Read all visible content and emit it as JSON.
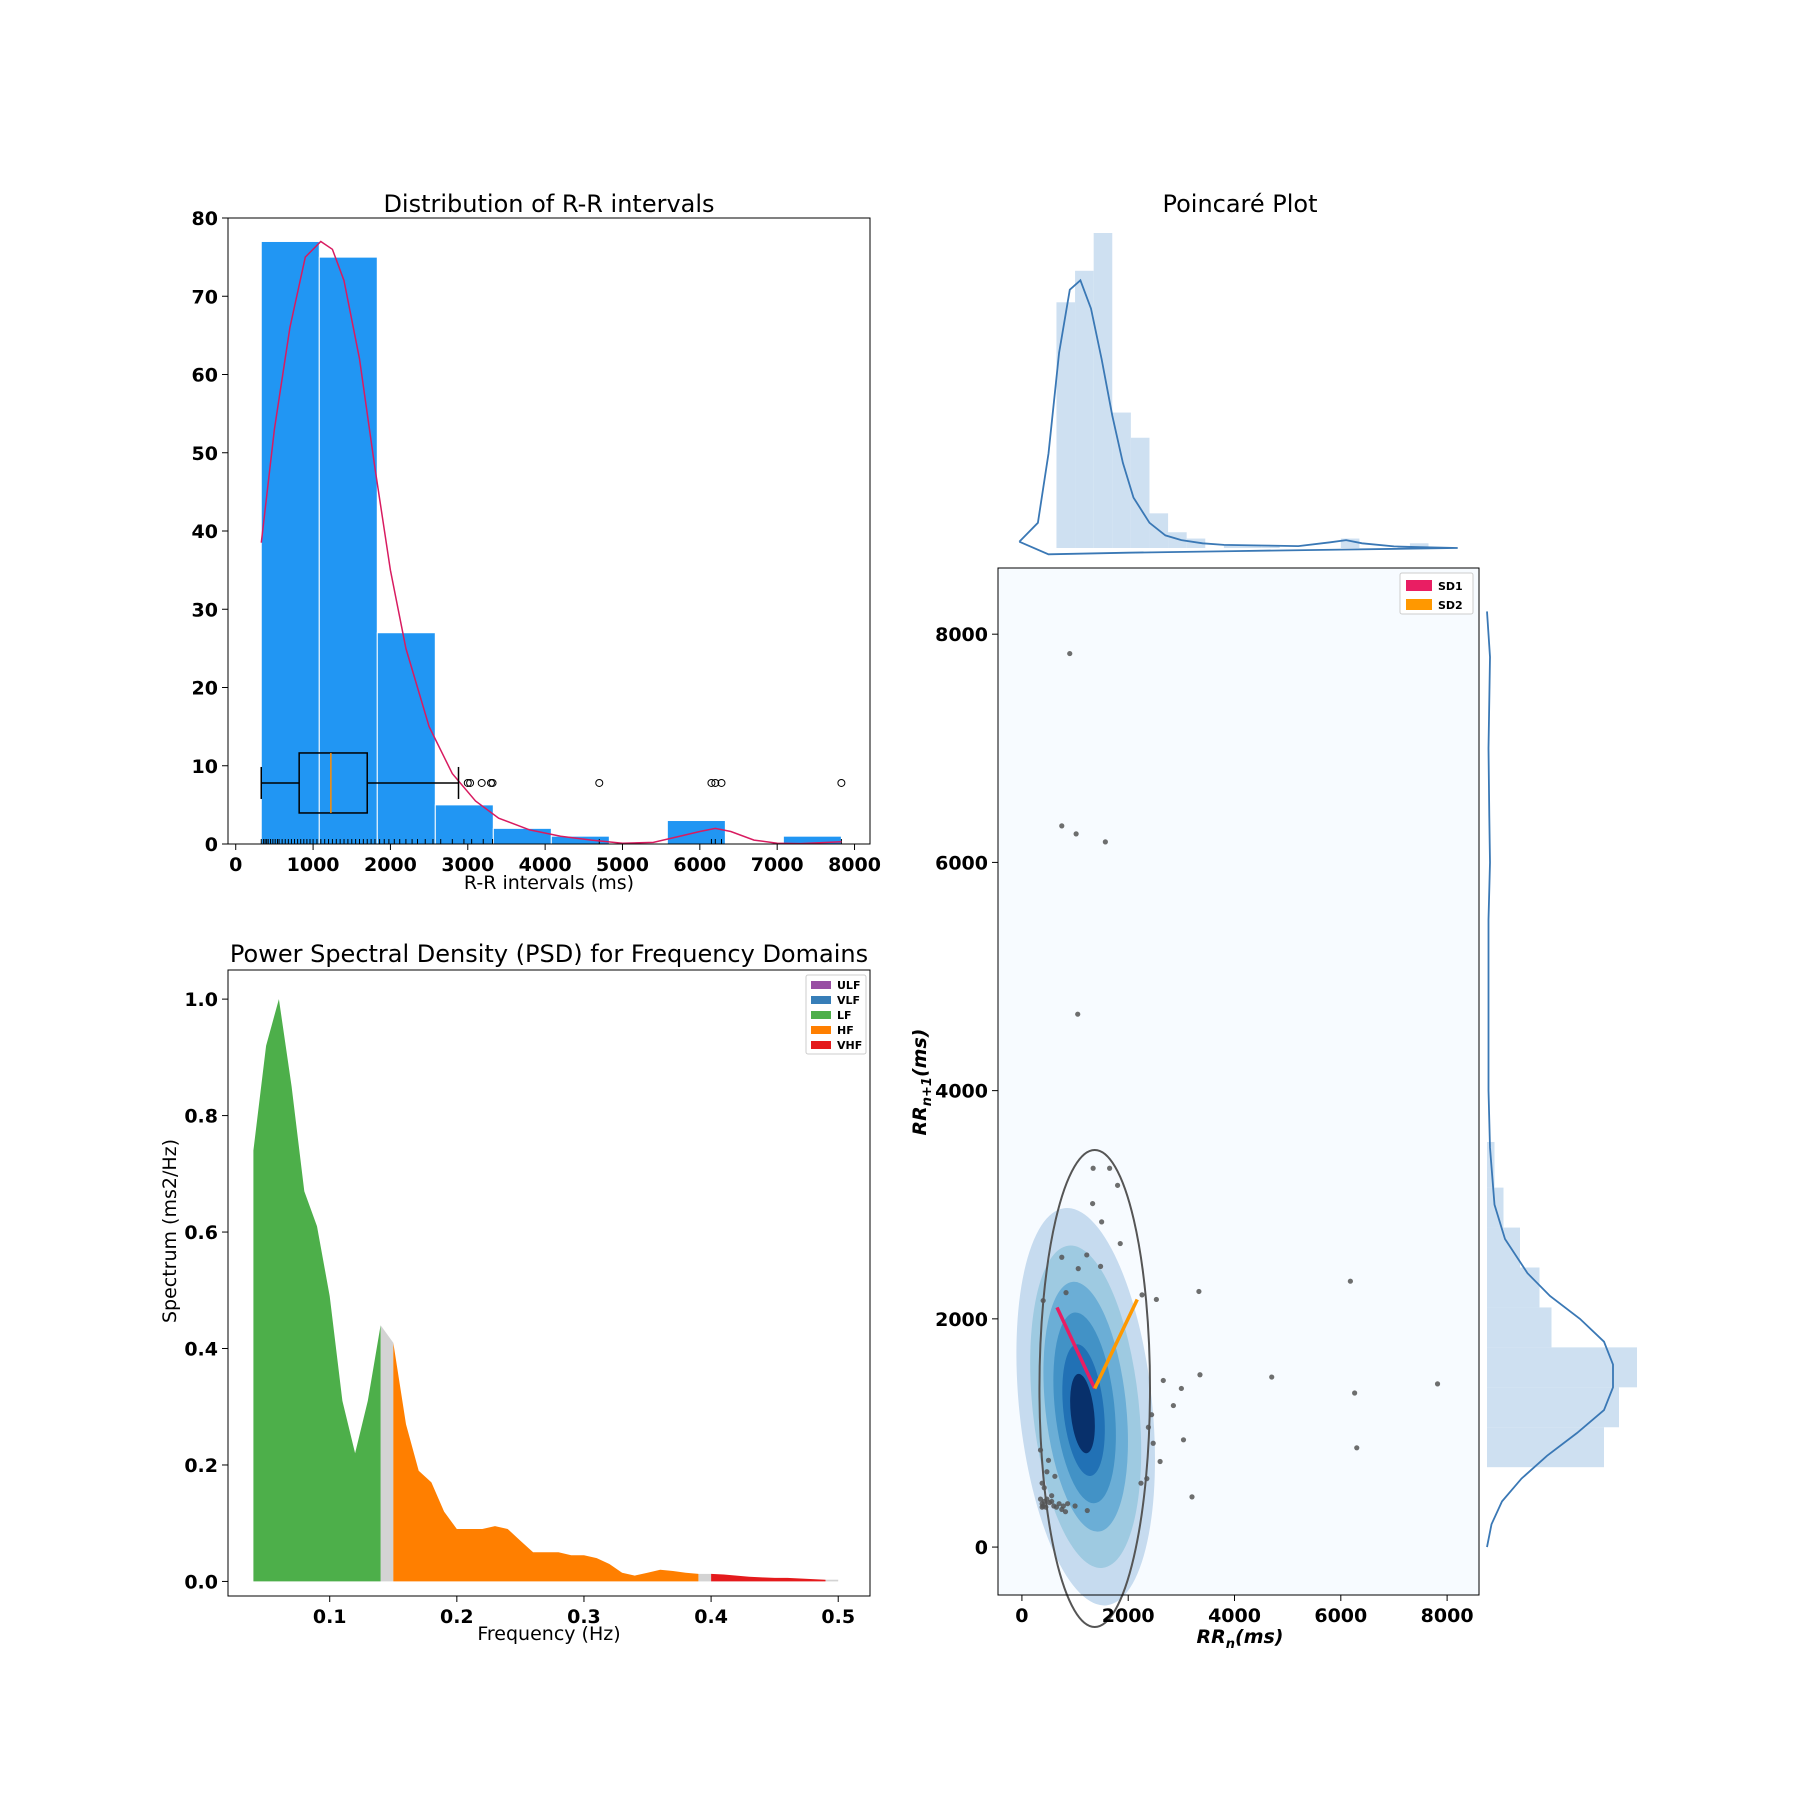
{
  "chart_data": [
    {
      "type": "bar",
      "title": "Distribution of R-R intervals",
      "xlabel": "R-R intervals (ms)",
      "ylabel": "",
      "xlim": [
        -100,
        8200
      ],
      "ylim": [
        0,
        80
      ],
      "xticks": [
        0,
        1000,
        2000,
        3000,
        4000,
        5000,
        6000,
        7000,
        8000
      ],
      "yticks": [
        0,
        10,
        20,
        30,
        40,
        50,
        60,
        70,
        80
      ],
      "bar_color": "#2196F3",
      "kde_color": "#D81B60",
      "bins": [
        {
          "x0": 330,
          "x1": 1080,
          "count": 77
        },
        {
          "x0": 1080,
          "x1": 1830,
          "count": 75
        },
        {
          "x0": 1830,
          "x1": 2580,
          "count": 27
        },
        {
          "x0": 2580,
          "x1": 3330,
          "count": 5
        },
        {
          "x0": 3330,
          "x1": 4080,
          "count": 2
        },
        {
          "x0": 4080,
          "x1": 4830,
          "count": 1
        },
        {
          "x0": 4830,
          "x1": 5580,
          "count": 0
        },
        {
          "x0": 5580,
          "x1": 6330,
          "count": 3
        },
        {
          "x0": 6330,
          "x1": 7080,
          "count": 0
        },
        {
          "x0": 7080,
          "x1": 7830,
          "count": 1
        }
      ],
      "kde": {
        "x": [
          330,
          500,
          700,
          900,
          1100,
          1250,
          1400,
          1600,
          1800,
          2000,
          2200,
          2500,
          2800,
          3100,
          3400,
          3800,
          4200,
          4600,
          5000,
          5400,
          5700,
          6000,
          6200,
          6400,
          6700,
          7000,
          7300,
          7830
        ],
        "y": [
          38.5,
          53,
          66,
          75,
          77,
          76,
          72,
          62,
          48,
          35,
          25,
          15,
          9,
          5.5,
          3.3,
          1.8,
          1.0,
          0.5,
          0.1,
          0.2,
          0.9,
          1.6,
          2.0,
          1.6,
          0.5,
          0.1,
          0.05,
          0.3
        ]
      },
      "boxplot": {
        "y_level": 7.8,
        "whisker_low": 330,
        "q1": 820,
        "median": 1230,
        "q3": 1700,
        "whisker_high": 2880,
        "outliers": [
          3000,
          3030,
          3180,
          3300,
          3320,
          4700,
          6150,
          6200,
          6280,
          7830
        ]
      },
      "rug": [
        330,
        360,
        380,
        400,
        420,
        450,
        480,
        510,
        540,
        560,
        600,
        640,
        680,
        720,
        760,
        800,
        840,
        880,
        920,
        960,
        1000,
        1050,
        1100,
        1150,
        1200,
        1250,
        1300,
        1350,
        1400,
        1450,
        1500,
        1550,
        1600,
        1650,
        1700,
        1750,
        1800,
        1860,
        1920,
        1980,
        2050,
        2120,
        2200,
        2280,
        2350,
        2450,
        2550,
        2650,
        2800,
        2950,
        3050,
        3200,
        3320,
        4700,
        6150,
        6200,
        6280,
        7830
      ]
    },
    {
      "type": "area",
      "title": "Power Spectral Density (PSD) for Frequency Domains",
      "xlabel": "Frequency (Hz)",
      "ylabel": "Spectrum (ms2/Hz)",
      "xlim": [
        0.02,
        0.525
      ],
      "ylim": [
        -0.025,
        1.05
      ],
      "xticks": [
        0.1,
        0.2,
        0.3,
        0.4,
        0.5
      ],
      "yticks": [
        0.0,
        0.2,
        0.4,
        0.6,
        0.8,
        1.0
      ],
      "x": [
        0.04,
        0.05,
        0.06,
        0.07,
        0.08,
        0.09,
        0.1,
        0.11,
        0.12,
        0.13,
        0.14,
        0.15,
        0.16,
        0.17,
        0.18,
        0.19,
        0.2,
        0.21,
        0.22,
        0.23,
        0.24,
        0.25,
        0.26,
        0.27,
        0.28,
        0.29,
        0.3,
        0.31,
        0.32,
        0.33,
        0.34,
        0.35,
        0.36,
        0.37,
        0.38,
        0.39,
        0.4,
        0.41,
        0.42,
        0.43,
        0.44,
        0.45,
        0.46,
        0.47,
        0.48,
        0.49,
        0.5
      ],
      "y": [
        0.74,
        0.92,
        1.0,
        0.85,
        0.67,
        0.61,
        0.49,
        0.31,
        0.22,
        0.31,
        0.44,
        0.41,
        0.27,
        0.19,
        0.17,
        0.12,
        0.09,
        0.09,
        0.09,
        0.095,
        0.09,
        0.07,
        0.05,
        0.05,
        0.05,
        0.045,
        0.045,
        0.04,
        0.03,
        0.015,
        0.01,
        0.015,
        0.02,
        0.018,
        0.015,
        0.013,
        0.013,
        0.012,
        0.01,
        0.008,
        0.007,
        0.006,
        0.006,
        0.005,
        0.004,
        0.003,
        0.003
      ],
      "bands": [
        {
          "name": "ULF",
          "range": [
            0,
            0.0033
          ],
          "color": "#984EA3"
        },
        {
          "name": "VLF",
          "range": [
            0.0033,
            0.04
          ],
          "color": "#377EB8"
        },
        {
          "name": "LF",
          "range": [
            0.04,
            0.14
          ],
          "color": "#4DAF4A"
        },
        {
          "name": "HF",
          "range": [
            0.15,
            0.39
          ],
          "color": "#FF7F00"
        },
        {
          "name": "VHF",
          "range": [
            0.4,
            0.49
          ],
          "color": "#E41A1C"
        }
      ],
      "gap_color": "#D3D3D3",
      "legend_position": "upper-right"
    },
    {
      "type": "scatter",
      "title": "Poincaré Plot",
      "xlabel": "RRn(ms)",
      "ylabel": "RRn+1(ms)",
      "xlabel_main": "RR",
      "xlabel_sub": "n",
      "xlabel_unit": "(ms)",
      "ylabel_main": "RR",
      "ylabel_sub": "n+1",
      "ylabel_unit": "(ms)",
      "xlim": [
        -450,
        8600
      ],
      "ylim": [
        -420,
        8580
      ],
      "xticks": [
        0,
        2000,
        4000,
        6000,
        8000
      ],
      "yticks": [
        0,
        2000,
        4000,
        6000,
        8000
      ],
      "points": [
        [
          900,
          7830
        ],
        [
          750,
          6320
        ],
        [
          1020,
          6250
        ],
        [
          1570,
          6180
        ],
        [
          1050,
          4670
        ],
        [
          1340,
          3320
        ],
        [
          1650,
          3320
        ],
        [
          1800,
          3170
        ],
        [
          1330,
          3010
        ],
        [
          1500,
          2850
        ],
        [
          1850,
          2660
        ],
        [
          750,
          2540
        ],
        [
          1220,
          2560
        ],
        [
          1480,
          2460
        ],
        [
          1060,
          2440
        ],
        [
          830,
          2230
        ],
        [
          2260,
          2210
        ],
        [
          2530,
          2170
        ],
        [
          3330,
          2240
        ],
        [
          6180,
          2330
        ],
        [
          400,
          2160
        ],
        [
          3350,
          1510
        ],
        [
          2660,
          1460
        ],
        [
          4700,
          1490
        ],
        [
          3000,
          1390
        ],
        [
          7820,
          1430
        ],
        [
          6260,
          1350
        ],
        [
          2850,
          1240
        ],
        [
          2440,
          1160
        ],
        [
          2380,
          1050
        ],
        [
          3040,
          940
        ],
        [
          2470,
          910
        ],
        [
          2600,
          750
        ],
        [
          6300,
          870
        ],
        [
          2350,
          600
        ],
        [
          2240,
          560
        ],
        [
          3200,
          440
        ],
        [
          350,
          850
        ],
        [
          500,
          760
        ],
        [
          470,
          660
        ],
        [
          620,
          620
        ],
        [
          380,
          560
        ],
        [
          420,
          520
        ],
        [
          560,
          450
        ],
        [
          470,
          420
        ],
        [
          420,
          400
        ],
        [
          520,
          390
        ],
        [
          380,
          380
        ],
        [
          400,
          360
        ],
        [
          380,
          350
        ],
        [
          450,
          350
        ],
        [
          600,
          360
        ],
        [
          700,
          380
        ],
        [
          780,
          360
        ],
        [
          860,
          380
        ],
        [
          1000,
          360
        ],
        [
          750,
          330
        ],
        [
          820,
          310
        ],
        [
          1230,
          320
        ],
        [
          350,
          420
        ],
        [
          560,
          400
        ],
        [
          650,
          350
        ]
      ],
      "point_color": "#555555",
      "centroid": [
        1370,
        1390
      ],
      "ellipse": {
        "rx": 1040,
        "ry": 2090
      },
      "sd1_end": [
        660,
        2100
      ],
      "sd2_end": [
        2170,
        2170
      ],
      "legend": [
        {
          "label": "SD1",
          "color": "#E91E63"
        },
        {
          "label": "SD2",
          "color": "#FF9800"
        }
      ],
      "kde_levels": [
        {
          "cx": 1200,
          "cy": 1230,
          "rx": 1250,
          "ry": 1750,
          "color": "#C6DBEF"
        },
        {
          "cx": 1200,
          "cy": 1230,
          "rx": 1000,
          "ry": 1420,
          "color": "#9ECAE1"
        },
        {
          "cx": 1200,
          "cy": 1230,
          "rx": 760,
          "ry": 1100,
          "color": "#6BAED6"
        },
        {
          "cx": 1180,
          "cy": 1220,
          "rx": 560,
          "ry": 840,
          "color": "#4292C6"
        },
        {
          "cx": 1160,
          "cy": 1200,
          "rx": 380,
          "ry": 580,
          "color": "#2171B5"
        },
        {
          "cx": 1140,
          "cy": 1170,
          "rx": 220,
          "ry": 350,
          "color": "#08306B"
        }
      ],
      "marginal_x": {
        "bins": [
          {
            "x0": 650,
            "x1": 1000,
            "h": 0.78
          },
          {
            "x0": 1000,
            "x1": 1350,
            "h": 0.88
          },
          {
            "x0": 1350,
            "x1": 1700,
            "h": 1.0
          },
          {
            "x0": 1700,
            "x1": 2050,
            "h": 0.43
          },
          {
            "x0": 2050,
            "x1": 2400,
            "h": 0.35
          },
          {
            "x0": 2400,
            "x1": 2750,
            "h": 0.11
          },
          {
            "x0": 2750,
            "x1": 3100,
            "h": 0.05
          },
          {
            "x0": 3100,
            "x1": 3450,
            "h": 0.03
          },
          {
            "x0": 3450,
            "x1": 3800,
            "h": 0.0
          },
          {
            "x0": 3800,
            "x1": 4150,
            "h": 0.01
          },
          {
            "x0": 4150,
            "x1": 4500,
            "h": 0.01
          },
          {
            "x0": 4500,
            "x1": 4850,
            "h": 0.005
          },
          {
            "x0": 6000,
            "x1": 6350,
            "h": 0.03
          },
          {
            "x0": 7300,
            "x1": 7650,
            "h": 0.015
          }
        ],
        "kde_x": [
          -50,
          300,
          500,
          700,
          900,
          1100,
          1300,
          1500,
          1700,
          1900,
          2100,
          2400,
          2700,
          3000,
          3400,
          3800,
          4500,
          5200,
          5800,
          6100,
          6400,
          7000,
          7500,
          8200,
          8150,
          6000,
          4000,
          2000,
          500,
          -50
        ],
        "kde_y": [
          0.02,
          0.08,
          0.3,
          0.62,
          0.82,
          0.85,
          0.76,
          0.6,
          0.42,
          0.27,
          0.16,
          0.08,
          0.04,
          0.025,
          0.015,
          0.01,
          0.008,
          0.006,
          0.018,
          0.025,
          0.015,
          0.005,
          0.003,
          0.0,
          0.0,
          -0.005,
          -0.01,
          -0.015,
          -0.02,
          0.02
        ]
      },
      "marginal_y": {
        "bins": [
          {
            "y0": 700,
            "y1": 1050,
            "w": 0.78
          },
          {
            "y0": 1050,
            "y1": 1400,
            "w": 0.88
          },
          {
            "y0": 1400,
            "y1": 1750,
            "w": 1.0
          },
          {
            "y0": 1750,
            "y1": 2100,
            "w": 0.43
          },
          {
            "y0": 2100,
            "y1": 2450,
            "w": 0.35
          },
          {
            "y0": 2450,
            "y1": 2800,
            "w": 0.22
          },
          {
            "y0": 2800,
            "y1": 3150,
            "w": 0.11
          },
          {
            "y0": 3150,
            "y1": 3550,
            "w": 0.05
          }
        ],
        "kde_y": [
          8200,
          7800,
          7000,
          6400,
          6000,
          5500,
          4800,
          4000,
          3500,
          3000,
          2700,
          2400,
          2200,
          2000,
          1800,
          1600,
          1400,
          1200,
          1000,
          800,
          600,
          400,
          200,
          0
        ],
        "kde_w": [
          0.0,
          0.02,
          0.01,
          0.015,
          0.02,
          0.01,
          0.01,
          0.01,
          0.02,
          0.05,
          0.12,
          0.27,
          0.42,
          0.62,
          0.78,
          0.84,
          0.84,
          0.78,
          0.6,
          0.4,
          0.23,
          0.1,
          0.03,
          0.0
        ]
      }
    }
  ]
}
